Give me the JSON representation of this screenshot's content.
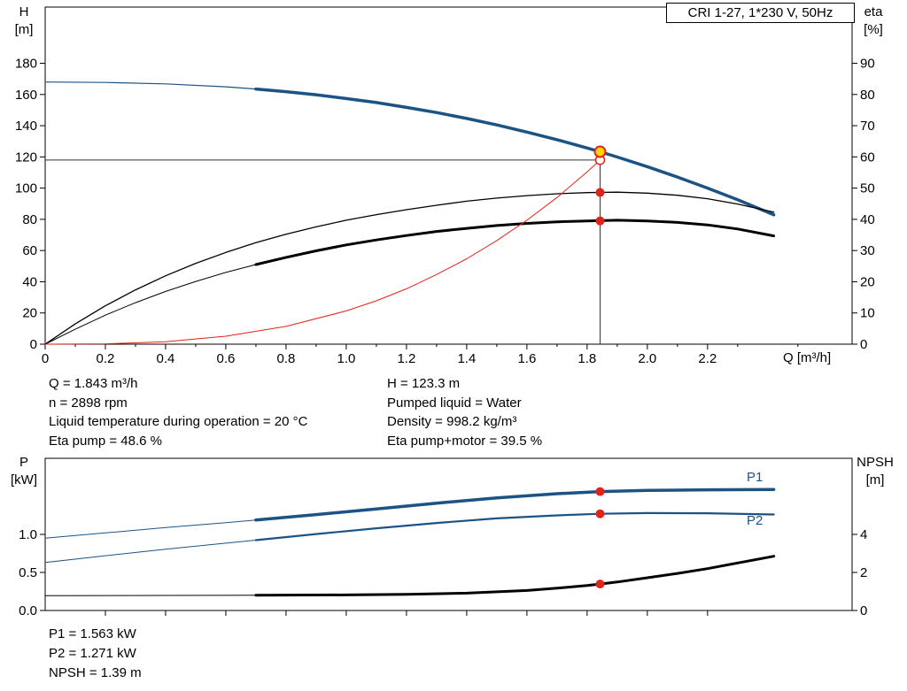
{
  "title_box": "CRI 1-27, 1*230 V, 50Hz",
  "colors": {
    "curve_blue": "#1b5385",
    "curve_black": "#000000",
    "curve_red": "#e32219",
    "dot_red": "#e32219",
    "duty_yellow": "#ffd700",
    "ref_line": "#333333"
  },
  "info_top": {
    "left": [
      "Q = 1.843 m³/h",
      "n = 2898 rpm",
      "Liquid temperature during operation = 20 °C",
      "Eta pump = 48.6 %"
    ],
    "right": [
      "H = 123.3 m",
      "Pumped liquid = Water",
      "Density = 998.2 kg/m³",
      "Eta pump+motor = 39.5 %"
    ]
  },
  "info_bottom": [
    "P1 = 1.563 kW",
    "P2 = 1.271 kW",
    "NPSH = 1.39 m"
  ],
  "chart_data": [
    {
      "type": "line",
      "title": "CRI 1-27, 1*230 V, 50Hz",
      "grid": false,
      "x_axis": {
        "label": "Q [m³/h]",
        "min": 0,
        "max": 2.68,
        "major_ticks": [
          [
            0,
            "0"
          ],
          [
            0.2,
            "0.2"
          ],
          [
            0.4,
            "0.4"
          ],
          [
            0.6,
            "0.6"
          ],
          [
            0.8,
            "0.8"
          ],
          [
            1.0,
            "1.0"
          ],
          [
            1.2,
            "1.2"
          ],
          [
            1.4,
            "1.4"
          ],
          [
            1.6,
            "1.6"
          ],
          [
            1.8,
            "1.8"
          ],
          [
            2.0,
            "2.0"
          ],
          [
            2.2,
            "2.2"
          ]
        ],
        "minor_ticks": [
          0.1,
          0.3,
          0.5,
          0.7,
          0.9,
          1.1,
          1.3,
          1.5,
          1.7,
          1.9,
          2.1,
          2.3,
          2.5
        ]
      },
      "y_left": {
        "title_lines": [
          "H",
          "[m]"
        ],
        "min": 0,
        "max": 216,
        "major_ticks": [
          [
            0,
            "0"
          ],
          [
            20,
            "20"
          ],
          [
            40,
            "40"
          ],
          [
            60,
            "60"
          ],
          [
            80,
            "80"
          ],
          [
            100,
            "100"
          ],
          [
            120,
            "120"
          ],
          [
            140,
            "140"
          ],
          [
            160,
            "160"
          ],
          [
            180,
            "180"
          ]
        ]
      },
      "y_right": {
        "title_lines": [
          "eta",
          "[%]"
        ],
        "min": 0,
        "max": 108,
        "major_ticks": [
          [
            0,
            "0"
          ],
          [
            10,
            "10"
          ],
          [
            20,
            "20"
          ],
          [
            30,
            "30"
          ],
          [
            40,
            "40"
          ],
          [
            50,
            "50"
          ],
          [
            60,
            "60"
          ],
          [
            70,
            "70"
          ],
          [
            80,
            "80"
          ],
          [
            90,
            "90"
          ]
        ]
      },
      "series": [
        {
          "name": "hq-curve-thin",
          "axis": "left",
          "color": "#1b5385",
          "width": 1.2,
          "points": [
            [
              0,
              168
            ],
            [
              0.2,
              167.7
            ],
            [
              0.4,
              166.8
            ],
            [
              0.6,
              164.9
            ],
            [
              0.7,
              163.5
            ]
          ]
        },
        {
          "name": "hq-curve",
          "axis": "left",
          "color": "#1b5385",
          "width": 3.5,
          "points": [
            [
              0.7,
              163.5
            ],
            [
              0.8,
              161.8
            ],
            [
              0.9,
              159.8
            ],
            [
              1.0,
              157.4
            ],
            [
              1.1,
              154.8
            ],
            [
              1.2,
              151.7
            ],
            [
              1.3,
              148.4
            ],
            [
              1.4,
              144.6
            ],
            [
              1.5,
              140.5
            ],
            [
              1.6,
              135.9
            ],
            [
              1.7,
              131.0
            ],
            [
              1.8,
              125.7
            ],
            [
              1.843,
              123.3
            ],
            [
              1.9,
              119.9
            ],
            [
              2.0,
              113.7
            ],
            [
              2.1,
              107.1
            ],
            [
              2.2,
              100.0
            ],
            [
              2.3,
              92.5
            ],
            [
              2.42,
              82.9
            ]
          ]
        },
        {
          "name": "eta-pump-curve",
          "axis": "right",
          "color": "#000000",
          "width": 1.3,
          "points": [
            [
              0,
              0
            ],
            [
              0.1,
              6.5
            ],
            [
              0.2,
              12.3
            ],
            [
              0.3,
              17.4
            ],
            [
              0.4,
              21.9
            ],
            [
              0.5,
              25.9
            ],
            [
              0.6,
              29.4
            ],
            [
              0.7,
              32.5
            ],
            [
              0.8,
              35.2
            ],
            [
              0.9,
              37.6
            ],
            [
              1.0,
              39.7
            ],
            [
              1.1,
              41.5
            ],
            [
              1.2,
              43.1
            ],
            [
              1.3,
              44.5
            ],
            [
              1.4,
              45.8
            ],
            [
              1.5,
              46.8
            ],
            [
              1.6,
              47.6
            ],
            [
              1.7,
              48.2
            ],
            [
              1.8,
              48.55
            ],
            [
              1.9,
              48.7
            ],
            [
              2.0,
              48.4
            ],
            [
              2.1,
              47.7
            ],
            [
              2.2,
              46.6
            ],
            [
              2.3,
              44.9
            ],
            [
              2.42,
              42.3
            ]
          ]
        },
        {
          "name": "eta-pump-motor-thin",
          "axis": "right",
          "color": "#000000",
          "width": 1,
          "points": [
            [
              0,
              0
            ],
            [
              0.1,
              4.8
            ],
            [
              0.2,
              9.3
            ],
            [
              0.3,
              13.3
            ],
            [
              0.4,
              16.9
            ],
            [
              0.5,
              20.1
            ],
            [
              0.6,
              23.0
            ],
            [
              0.7,
              25.5
            ]
          ]
        },
        {
          "name": "eta-pump-motor-curve",
          "axis": "right",
          "color": "#000000",
          "width": 3,
          "points": [
            [
              0.7,
              25.5
            ],
            [
              0.8,
              27.8
            ],
            [
              0.9,
              29.9
            ],
            [
              1.0,
              31.8
            ],
            [
              1.1,
              33.4
            ],
            [
              1.2,
              34.8
            ],
            [
              1.3,
              36.1
            ],
            [
              1.4,
              37.1
            ],
            [
              1.5,
              38.0
            ],
            [
              1.6,
              38.7
            ],
            [
              1.7,
              39.2
            ],
            [
              1.8,
              39.5
            ],
            [
              1.9,
              39.7
            ],
            [
              2.0,
              39.5
            ],
            [
              2.1,
              39.0
            ],
            [
              2.2,
              38.2
            ],
            [
              2.3,
              36.9
            ],
            [
              2.42,
              34.7
            ]
          ]
        },
        {
          "name": "system-curve",
          "axis": "left",
          "color": "#e32219",
          "width": 1,
          "points": [
            [
              0,
              0
            ],
            [
              0.2,
              0.2
            ],
            [
              0.4,
              1.6
            ],
            [
              0.6,
              5.1
            ],
            [
              0.8,
              11.4
            ],
            [
              1.0,
              21.3
            ],
            [
              1.1,
              27.8
            ],
            [
              1.2,
              35.5
            ],
            [
              1.3,
              44.6
            ],
            [
              1.4,
              54.7
            ],
            [
              1.5,
              66.4
            ],
            [
              1.6,
              79.4
            ],
            [
              1.7,
              94.0
            ],
            [
              1.8,
              110.4
            ],
            [
              1.843,
              118
            ]
          ]
        }
      ],
      "ref_lines": [
        {
          "type": "h",
          "axis": "left",
          "y": 118,
          "x1": 0,
          "x2": 1.843,
          "color": "#333333",
          "width": 1
        },
        {
          "type": "v",
          "axis": "left",
          "x": 1.843,
          "y1": 0,
          "y2": 123.3,
          "color": "#333333",
          "width": 1
        }
      ],
      "markers": [
        {
          "name": "requested-duty-point",
          "axis": "left",
          "x": 1.843,
          "y": 118,
          "r": 5,
          "fill": "#ffffff",
          "stroke": "#e32219",
          "stroke_width": 1.5
        },
        {
          "name": "duty-point",
          "axis": "left",
          "x": 1.843,
          "y": 123.3,
          "r": 6,
          "fill": "#ffd700",
          "stroke": "#e32219",
          "stroke_width": 2
        },
        {
          "name": "eta-pump-dot",
          "axis": "right",
          "x": 1.843,
          "y": 48.6,
          "r": 5,
          "fill": "#e32219"
        },
        {
          "name": "eta-pump-motor-dot",
          "axis": "right",
          "x": 1.843,
          "y": 39.5,
          "r": 5,
          "fill": "#e32219"
        }
      ],
      "annotations": []
    },
    {
      "type": "line",
      "title": "",
      "grid": false,
      "x_axis": {
        "label": "",
        "min": 0,
        "max": 2.68,
        "major_ticks": [
          [
            0.2,
            ""
          ],
          [
            0.4,
            ""
          ],
          [
            0.6,
            ""
          ],
          [
            0.8,
            ""
          ],
          [
            1.0,
            ""
          ],
          [
            1.2,
            ""
          ],
          [
            1.4,
            ""
          ],
          [
            1.6,
            ""
          ],
          [
            1.8,
            ""
          ],
          [
            2.0,
            ""
          ],
          [
            2.2,
            ""
          ]
        ],
        "minor_ticks": []
      },
      "y_left": {
        "title_lines": [
          "P",
          "[kW]"
        ],
        "min": 0,
        "max": 2.0,
        "major_ticks": [
          [
            0,
            "0.0"
          ],
          [
            0.5,
            "0.5"
          ],
          [
            1.0,
            "1.0"
          ]
        ]
      },
      "y_right": {
        "title_lines": [
          "NPSH",
          "[m]"
        ],
        "min": 0,
        "max": 8,
        "major_ticks": [
          [
            0,
            "0"
          ],
          [
            2,
            "2"
          ],
          [
            4,
            "4"
          ]
        ]
      },
      "series": [
        {
          "name": "p1-curve-thin",
          "axis": "left",
          "color": "#1b5385",
          "width": 1,
          "points": [
            [
              0,
              0.95
            ],
            [
              0.2,
              1.02
            ],
            [
              0.4,
              1.09
            ],
            [
              0.6,
              1.155
            ],
            [
              0.7,
              1.19
            ]
          ]
        },
        {
          "name": "p1-curve",
          "axis": "left",
          "color": "#1b5385",
          "width": 3.5,
          "points": [
            [
              0.7,
              1.19
            ],
            [
              0.9,
              1.26
            ],
            [
              1.1,
              1.335
            ],
            [
              1.3,
              1.41
            ],
            [
              1.5,
              1.48
            ],
            [
              1.7,
              1.535
            ],
            [
              1.843,
              1.563
            ],
            [
              2.0,
              1.578
            ],
            [
              2.2,
              1.586
            ],
            [
              2.42,
              1.59
            ]
          ]
        },
        {
          "name": "p2-curve-thin",
          "axis": "left",
          "color": "#1b5385",
          "width": 1,
          "points": [
            [
              0,
              0.63
            ],
            [
              0.2,
              0.72
            ],
            [
              0.4,
              0.805
            ],
            [
              0.6,
              0.885
            ],
            [
              0.7,
              0.925
            ]
          ]
        },
        {
          "name": "p2-curve",
          "axis": "left",
          "color": "#1b5385",
          "width": 2.2,
          "points": [
            [
              0.7,
              0.925
            ],
            [
              0.9,
              1.005
            ],
            [
              1.1,
              1.08
            ],
            [
              1.3,
              1.15
            ],
            [
              1.5,
              1.21
            ],
            [
              1.7,
              1.25
            ],
            [
              1.843,
              1.271
            ],
            [
              2.0,
              1.28
            ],
            [
              2.2,
              1.278
            ],
            [
              2.42,
              1.262
            ]
          ]
        },
        {
          "name": "npsh-curve-thin",
          "axis": "right",
          "color": "#000000",
          "width": 1,
          "points": [
            [
              0,
              0.78
            ],
            [
              0.4,
              0.79
            ],
            [
              0.7,
              0.8
            ]
          ]
        },
        {
          "name": "npsh-curve",
          "axis": "right",
          "color": "#000000",
          "width": 3,
          "points": [
            [
              0.7,
              0.8
            ],
            [
              1.0,
              0.82
            ],
            [
              1.2,
              0.85
            ],
            [
              1.4,
              0.91
            ],
            [
              1.6,
              1.05
            ],
            [
              1.7,
              1.17
            ],
            [
              1.8,
              1.31
            ],
            [
              1.843,
              1.39
            ],
            [
              1.9,
              1.5
            ],
            [
              2.0,
              1.72
            ],
            [
              2.1,
              1.95
            ],
            [
              2.2,
              2.2
            ],
            [
              2.3,
              2.5
            ],
            [
              2.42,
              2.85
            ]
          ]
        }
      ],
      "ref_lines": [],
      "markers": [
        {
          "name": "p1-dot",
          "axis": "left",
          "x": 1.843,
          "y": 1.563,
          "r": 5,
          "fill": "#e32219"
        },
        {
          "name": "p2-dot",
          "axis": "left",
          "x": 1.843,
          "y": 1.271,
          "r": 5,
          "fill": "#e32219"
        },
        {
          "name": "npsh-dot",
          "axis": "right",
          "x": 1.843,
          "y": 1.39,
          "r": 5,
          "fill": "#e32219"
        }
      ],
      "annotations": [
        {
          "name": "p1-label",
          "text": "P1",
          "axis": "left",
          "x": 2.33,
          "y": 1.7,
          "color": "#1b5385",
          "size": 15
        },
        {
          "name": "p2-label",
          "text": "P2",
          "axis": "left",
          "x": 2.33,
          "y": 1.13,
          "color": "#1b5385",
          "size": 15
        }
      ]
    }
  ]
}
